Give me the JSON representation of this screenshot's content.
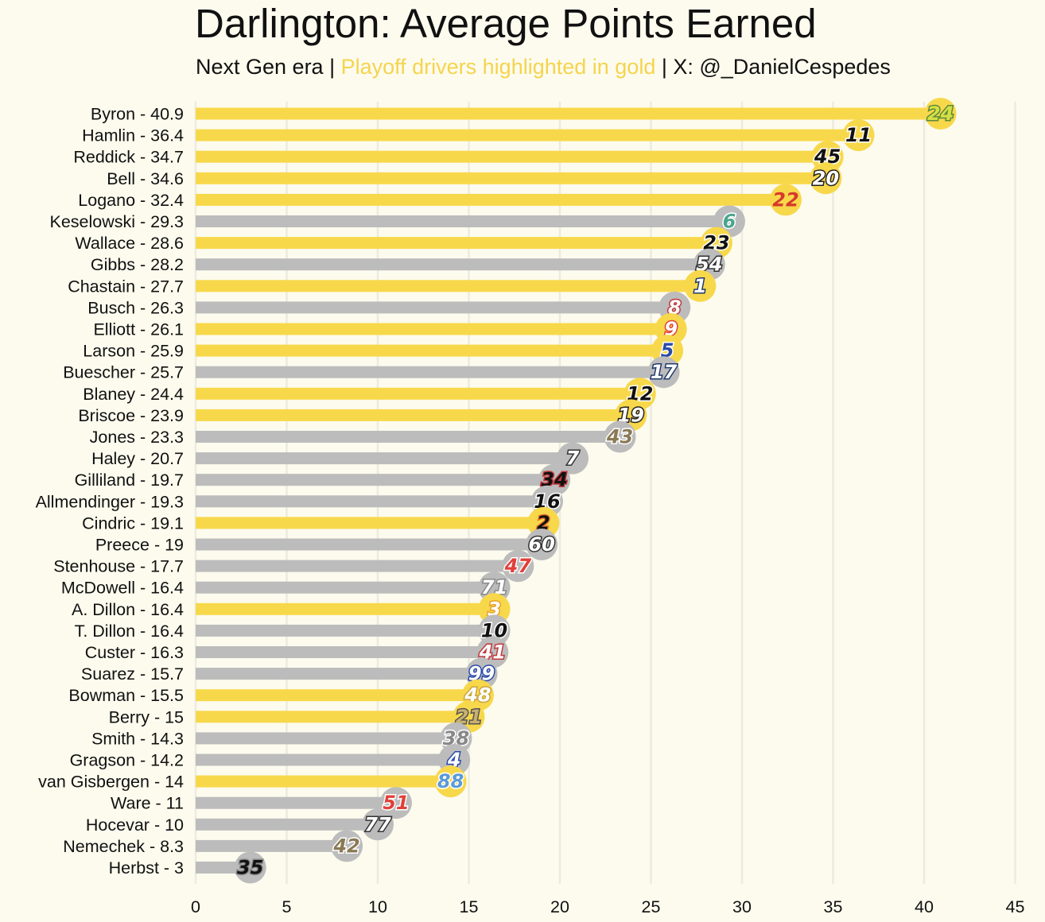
{
  "title": "Darlington: Average Points Earned",
  "subtitle": {
    "part1": "Next Gen era | ",
    "part2": "Playoff drivers highlighted in gold",
    "part3": " | X: @_DanielCespedes"
  },
  "colors": {
    "background": "#fcfbee",
    "playoff": "#f8d84b",
    "non_playoff": "#bcbcbc",
    "gridline": "#ecebdf"
  },
  "chart_data": {
    "type": "bar",
    "orientation": "horizontal",
    "title": "Darlington: Average Points Earned",
    "xlabel": "",
    "ylabel": "",
    "xlim": [
      0,
      45
    ],
    "x_ticks": [
      0,
      5,
      10,
      15,
      20,
      25,
      30,
      35,
      40,
      45
    ],
    "grid": "vertical",
    "bars": [
      {
        "label": "Byron - 40.9",
        "value": 40.9,
        "playoff": true,
        "car_number": "24",
        "num_color": "#d6e044",
        "num_stroke": "#5c8a3a"
      },
      {
        "label": "Hamlin - 36.4",
        "value": 36.4,
        "playoff": true,
        "car_number": "11",
        "num_color": "#111111",
        "num_stroke": "#ffffff"
      },
      {
        "label": "Reddick - 34.7",
        "value": 34.7,
        "playoff": true,
        "car_number": "45",
        "num_color": "#111111",
        "num_stroke": "#ffffff"
      },
      {
        "label": "Bell - 34.6",
        "value": 34.6,
        "playoff": true,
        "car_number": "20",
        "num_color": "#ffffff",
        "num_stroke": "#222222"
      },
      {
        "label": "Logano - 32.4",
        "value": 32.4,
        "playoff": true,
        "car_number": "22",
        "num_color": "#d63a2a",
        "num_stroke": "#f8d84b"
      },
      {
        "label": "Keselowski - 29.3",
        "value": 29.3,
        "playoff": false,
        "car_number": "6",
        "num_color": "#4aa58c",
        "num_stroke": "#ffffff"
      },
      {
        "label": "Wallace - 28.6",
        "value": 28.6,
        "playoff": true,
        "car_number": "23",
        "num_color": "#111111",
        "num_stroke": "#ffffff"
      },
      {
        "label": "Gibbs - 28.2",
        "value": 28.2,
        "playoff": false,
        "car_number": "54",
        "num_color": "#ffffff",
        "num_stroke": "#333333"
      },
      {
        "label": "Chastain - 27.7",
        "value": 27.7,
        "playoff": true,
        "car_number": "1",
        "num_color": "#ffffff",
        "num_stroke": "#1f3a6b"
      },
      {
        "label": "Busch - 26.3",
        "value": 26.3,
        "playoff": false,
        "car_number": "8",
        "num_color": "#ffffff",
        "num_stroke": "#c0393b"
      },
      {
        "label": "Elliott - 26.1",
        "value": 26.1,
        "playoff": true,
        "car_number": "9",
        "num_color": "#ffffff",
        "num_stroke": "#e0403a"
      },
      {
        "label": "Larson - 25.9",
        "value": 25.9,
        "playoff": true,
        "car_number": "5",
        "num_color": "#2a4aa8",
        "num_stroke": "#ffffff"
      },
      {
        "label": "Buescher - 25.7",
        "value": 25.7,
        "playoff": false,
        "car_number": "17",
        "num_color": "#ffffff",
        "num_stroke": "#1f3a6b"
      },
      {
        "label": "Blaney - 24.4",
        "value": 24.4,
        "playoff": true,
        "car_number": "12",
        "num_color": "#111111",
        "num_stroke": "#ffffff"
      },
      {
        "label": "Briscoe - 23.9",
        "value": 23.9,
        "playoff": true,
        "car_number": "19",
        "num_color": "#ffffff",
        "num_stroke": "#222222"
      },
      {
        "label": "Jones - 23.3",
        "value": 23.3,
        "playoff": false,
        "car_number": "43",
        "num_color": "#8a7a55",
        "num_stroke": "#ffffff"
      },
      {
        "label": "Haley - 20.7",
        "value": 20.7,
        "playoff": false,
        "car_number": "7",
        "num_color": "#ffffff",
        "num_stroke": "#333333"
      },
      {
        "label": "Gilliland - 19.7",
        "value": 19.7,
        "playoff": false,
        "car_number": "34",
        "num_color": "#111111",
        "num_stroke": "#c0393b"
      },
      {
        "label": "Allmendinger - 19.3",
        "value": 19.3,
        "playoff": false,
        "car_number": "16",
        "num_color": "#111111",
        "num_stroke": "#ffffff"
      },
      {
        "label": "Cindric - 19.1",
        "value": 19.1,
        "playoff": true,
        "car_number": "2",
        "num_color": "#111111",
        "num_stroke": "#e8772a"
      },
      {
        "label": "Preece - 19",
        "value": 19,
        "playoff": false,
        "car_number": "60",
        "num_color": "#ffffff",
        "num_stroke": "#333333"
      },
      {
        "label": "Stenhouse - 17.7",
        "value": 17.7,
        "playoff": false,
        "car_number": "47",
        "num_color": "#e0403a",
        "num_stroke": "#ffffff"
      },
      {
        "label": "McDowell - 16.4",
        "value": 16.4,
        "playoff": false,
        "car_number": "71",
        "num_color": "#ffffff",
        "num_stroke": "#888888"
      },
      {
        "label": "A. Dillon - 16.4",
        "value": 16.4,
        "playoff": true,
        "car_number": "3",
        "num_color": "#ffffff",
        "num_stroke": "#e8a02a"
      },
      {
        "label": "T. Dillon - 16.4",
        "value": 16.4,
        "playoff": false,
        "car_number": "10",
        "num_color": "#111111",
        "num_stroke": "#ffffff"
      },
      {
        "label": "Custer - 16.3",
        "value": 16.3,
        "playoff": false,
        "car_number": "41",
        "num_color": "#ffffff",
        "num_stroke": "#c0393b"
      },
      {
        "label": "Suarez - 15.7",
        "value": 15.7,
        "playoff": false,
        "car_number": "99",
        "num_color": "#ffffff",
        "num_stroke": "#2a4aa8"
      },
      {
        "label": "Bowman - 15.5",
        "value": 15.5,
        "playoff": true,
        "car_number": "48",
        "num_color": "#ffffff",
        "num_stroke": "#c9a440"
      },
      {
        "label": "Berry - 15",
        "value": 15,
        "playoff": true,
        "car_number": "21",
        "num_color": "#c9b070",
        "num_stroke": "#555555"
      },
      {
        "label": "Smith - 14.3",
        "value": 14.3,
        "playoff": false,
        "car_number": "38",
        "num_color": "#888888",
        "num_stroke": "#ffffff"
      },
      {
        "label": "Gragson - 14.2",
        "value": 14.2,
        "playoff": false,
        "car_number": "4",
        "num_color": "#ffffff",
        "num_stroke": "#2a4aa8"
      },
      {
        "label": "van Gisbergen - 14",
        "value": 14,
        "playoff": true,
        "car_number": "88",
        "num_color": "#5a9ad8",
        "num_stroke": "#ffffff"
      },
      {
        "label": "Ware - 11",
        "value": 11,
        "playoff": false,
        "car_number": "51",
        "num_color": "#e0403a",
        "num_stroke": "#ffffff"
      },
      {
        "label": "Hocevar - 10",
        "value": 10,
        "playoff": false,
        "car_number": "77",
        "num_color": "#ffffff",
        "num_stroke": "#333333"
      },
      {
        "label": "Nemechek - 8.3",
        "value": 8.3,
        "playoff": false,
        "car_number": "42",
        "num_color": "#8a7a55",
        "num_stroke": "#ffffff"
      },
      {
        "label": "Herbst - 3",
        "value": 3,
        "playoff": false,
        "car_number": "35",
        "num_color": "#111111",
        "num_stroke": "#888888"
      }
    ]
  }
}
